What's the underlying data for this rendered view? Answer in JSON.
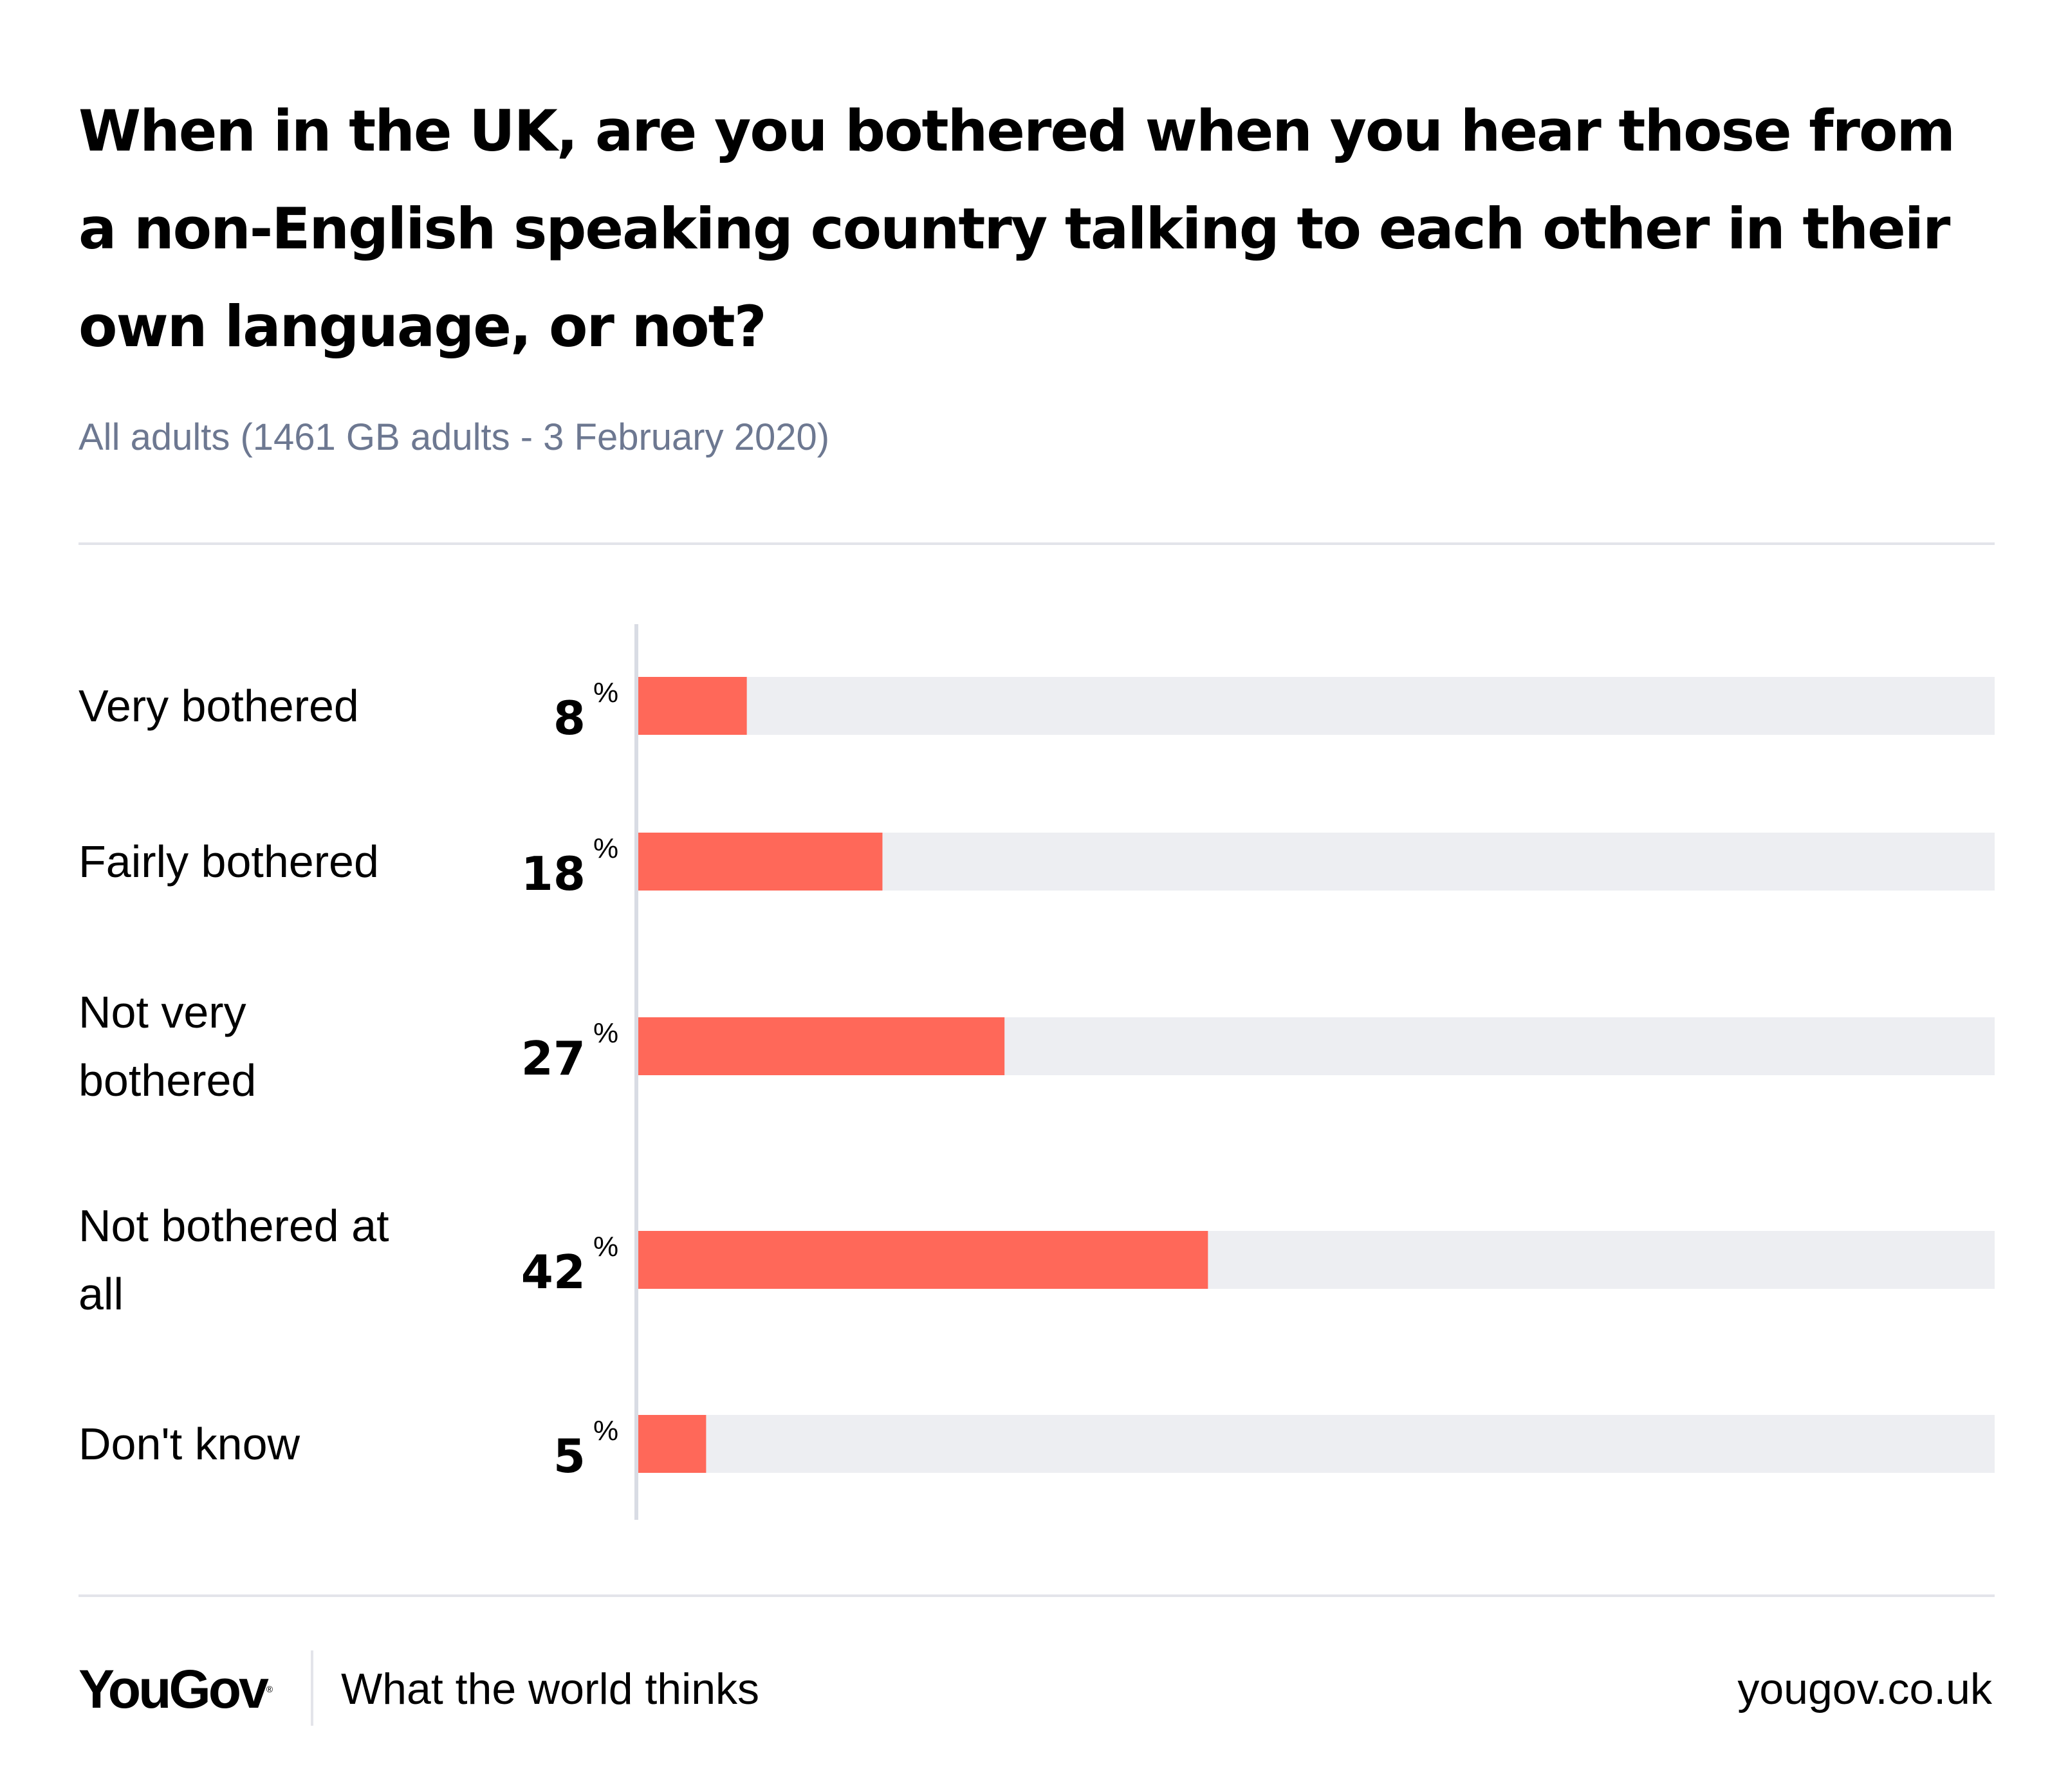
{
  "header": {
    "title": "When in the UK, are you bothered when you hear those from a non-English speaking country talking to each other in their own language, or not?",
    "subtitle": "All adults (1461 GB adults - 3 February 2020)"
  },
  "colors": {
    "bar": "#ff6859",
    "track": "#edeef2",
    "axis": "#d9dce4",
    "subtitle": "#6d7891",
    "rule": "#e3e4ea"
  },
  "chart_data": {
    "type": "bar",
    "orientation": "horizontal",
    "title": "When in the UK, are you bothered when you hear those from a non-English speaking country talking to each other in their own language, or not?",
    "subtitle": "All adults (1461 GB adults - 3 February 2020)",
    "categories": [
      "Very bothered",
      "Fairly bothered",
      "Not very bothered",
      "Not bothered at all",
      "Don't know"
    ],
    "category_label_lines": [
      [
        "Very bothered"
      ],
      [
        "Fairly bothered"
      ],
      [
        "Not very",
        "bothered"
      ],
      [
        "Not bothered at",
        "all"
      ],
      [
        "Don't know"
      ]
    ],
    "values": [
      8,
      18,
      27,
      42,
      5
    ],
    "value_suffix": "%",
    "xlim": [
      0,
      100
    ],
    "xlabel": "",
    "ylabel": "",
    "grid": false,
    "legend": "none"
  },
  "footer": {
    "brand": "YouGov",
    "brand_mark": "®",
    "tagline": "What the world thinks",
    "url": "yougov.co.uk"
  }
}
